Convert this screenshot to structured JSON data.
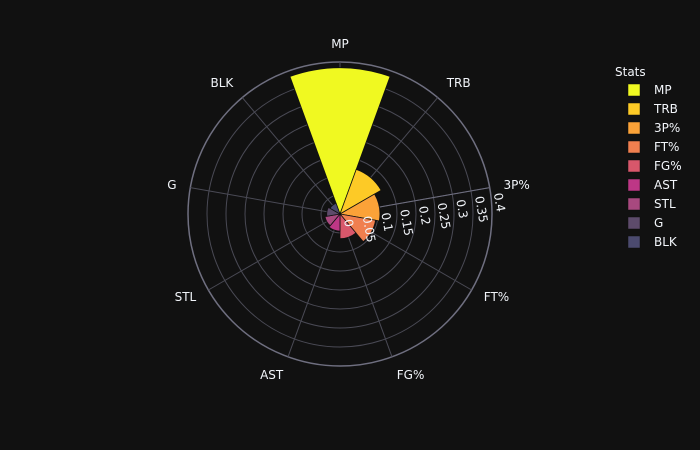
{
  "chart_data": {
    "type": "barpolar",
    "title": "",
    "legend": {
      "title": "Stats",
      "placement": "top-right"
    },
    "radial_axis": {
      "range": [
        0,
        0.4
      ],
      "ticks": [
        "0",
        "0.05",
        "0.1",
        "0.15",
        "0.2",
        "0.25",
        "0.3",
        "0.35",
        "0.4"
      ]
    },
    "angular_categories": [
      "MP",
      "TRB",
      "3P%",
      "FT%",
      "FG%",
      "AST",
      "STL",
      "G",
      "BLK"
    ],
    "series": [
      {
        "name": "MP",
        "value": 0.385,
        "color": "#f0f921"
      },
      {
        "name": "TRB",
        "value": 0.125,
        "color": "#fdca26"
      },
      {
        "name": "3P%",
        "value": 0.105,
        "color": "#fba238"
      },
      {
        "name": "FT%",
        "value": 0.095,
        "color": "#f07f4f"
      },
      {
        "name": "FG%",
        "value": 0.065,
        "color": "#d8576b"
      },
      {
        "name": "AST",
        "value": 0.045,
        "color": "#bd3786"
      },
      {
        "name": "STL",
        "value": 0.04,
        "color": "#a8497f"
      },
      {
        "name": "G",
        "value": 0.035,
        "color": "#5d4b6b"
      },
      {
        "name": "BLK",
        "value": 0.03,
        "color": "#4b4a6e"
      }
    ]
  }
}
